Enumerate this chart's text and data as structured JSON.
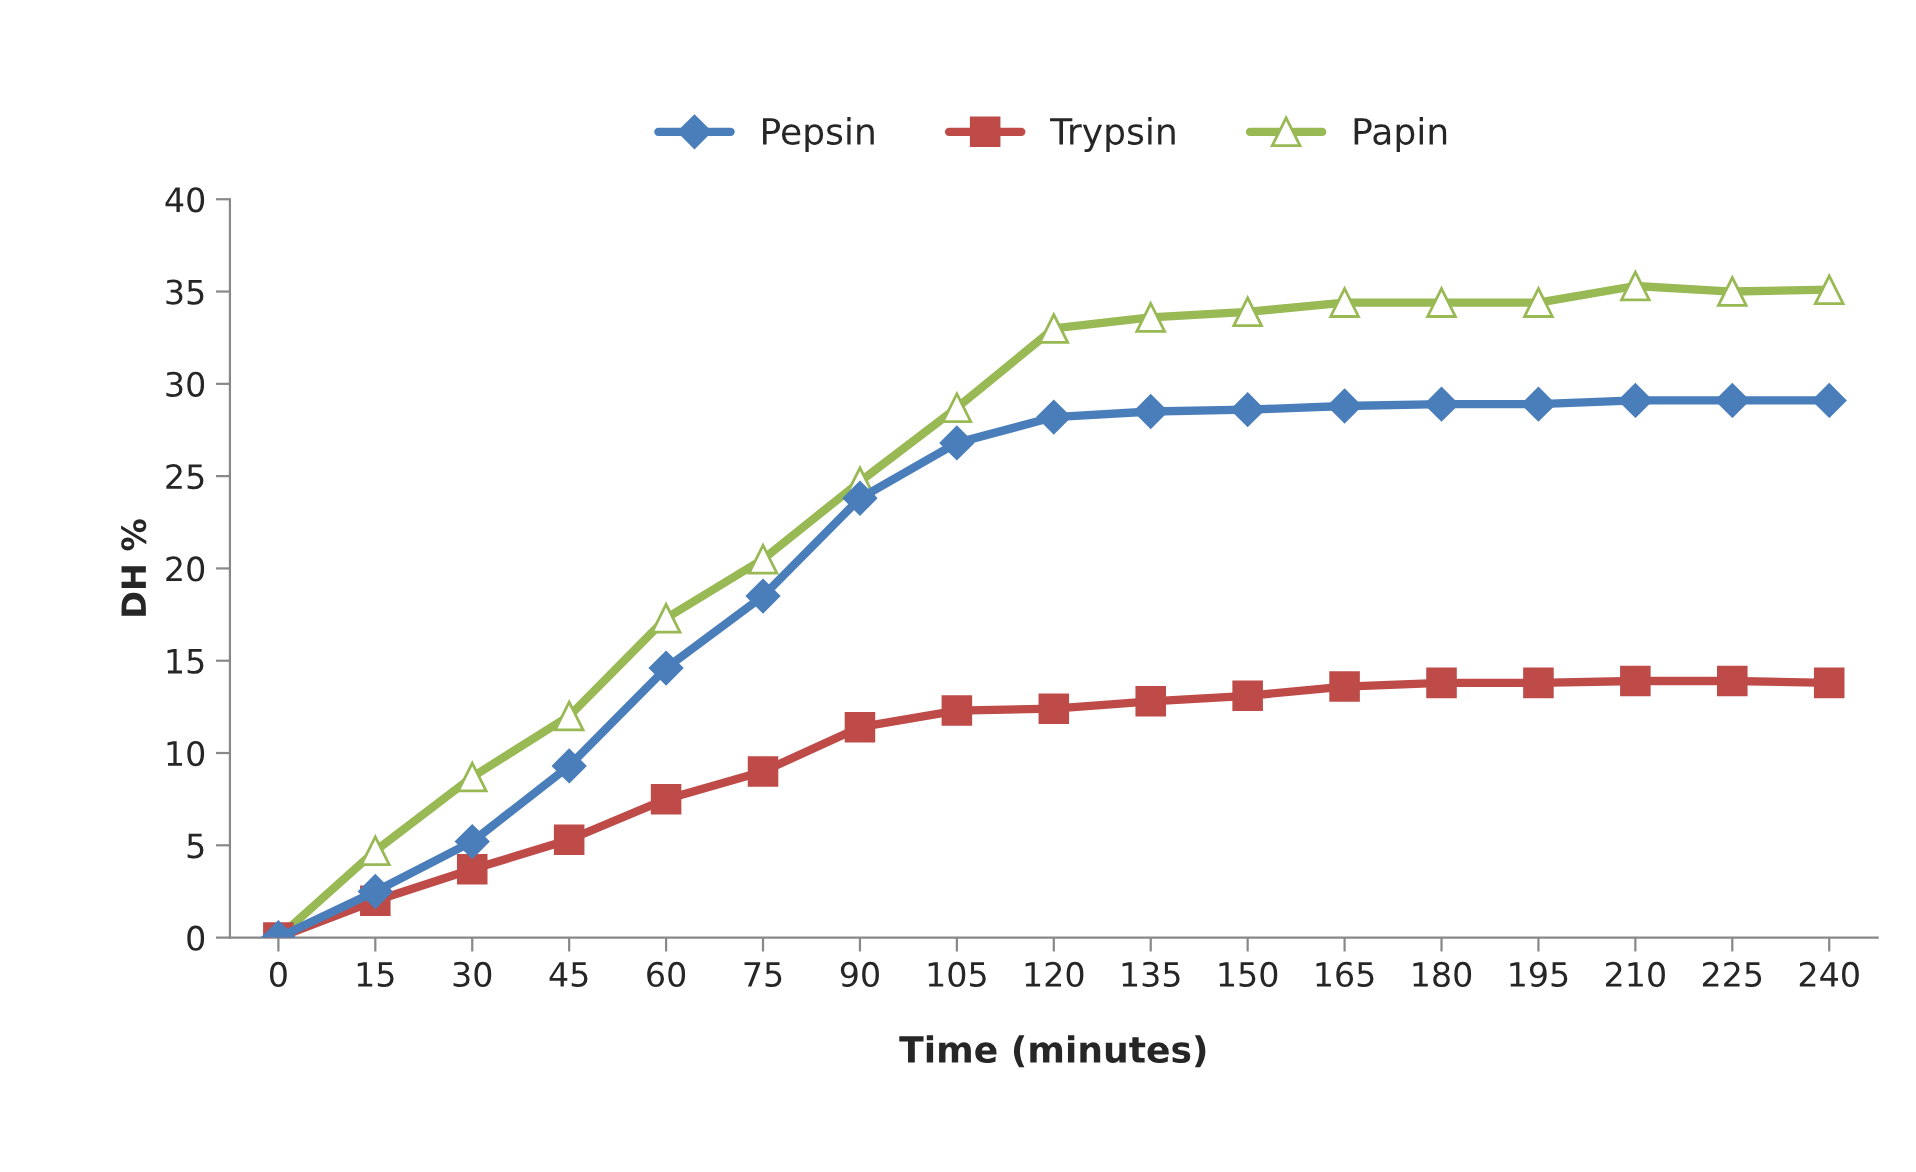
{
  "chart_data": {
    "type": "line",
    "xlabel": "Time (minutes)",
    "ylabel": "DH %",
    "categories": [
      "0",
      "15",
      "30",
      "45",
      "60",
      "75",
      "90",
      "105",
      "120",
      "135",
      "150",
      "165",
      "180",
      "195",
      "210",
      "225",
      "240"
    ],
    "series": [
      {
        "name": "Pepsin",
        "color": "#4a7ebb",
        "marker": "diamond",
        "values": [
          0,
          2.5,
          5.2,
          9.3,
          14.6,
          18.5,
          23.8,
          26.8,
          28.2,
          28.5,
          28.6,
          28.8,
          28.9,
          28.9,
          29.1,
          29.1,
          29.1
        ]
      },
      {
        "name": "Trypsin",
        "color": "#be4b48",
        "marker": "square",
        "values": [
          0,
          2.0,
          3.7,
          5.3,
          7.5,
          9.0,
          11.4,
          12.3,
          12.4,
          12.8,
          13.1,
          13.6,
          13.8,
          13.8,
          13.9,
          13.9,
          13.8
        ]
      },
      {
        "name": "Papin",
        "color": "#98b954",
        "marker": "triangle",
        "values": [
          0,
          4.7,
          8.7,
          12.0,
          17.3,
          20.5,
          24.7,
          28.7,
          33.0,
          33.6,
          33.9,
          34.4,
          34.4,
          34.4,
          35.3,
          35.0,
          35.1
        ]
      }
    ],
    "ylim": [
      0,
      40
    ],
    "yticks": [
      0,
      5,
      10,
      15,
      20,
      25,
      30,
      35,
      40
    ],
    "grid": false,
    "legend": "top",
    "line_style": "solid"
  }
}
